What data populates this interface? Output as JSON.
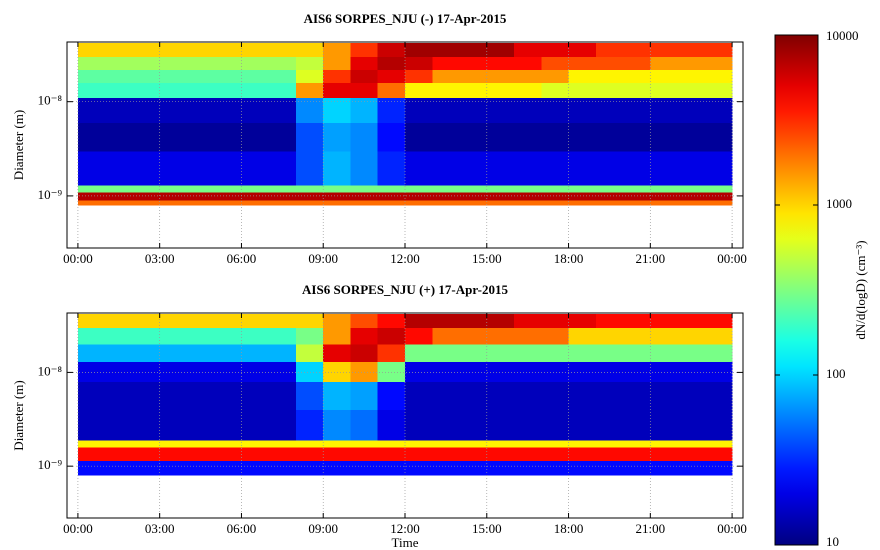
{
  "chart_data": [
    {
      "type": "heatmap",
      "title": "AIS6 SORPES_NJU (-) 17-Apr-2015",
      "ylabel": "Diameter (m)",
      "xlim": [
        -0.4,
        24.4
      ],
      "ylim": [
        2.8e-10,
        4.3e-08
      ],
      "ylog": true,
      "grid": true,
      "xticks": [
        {
          "value": 0,
          "label": "00:00"
        },
        {
          "value": 3,
          "label": "03:00"
        },
        {
          "value": 6,
          "label": "06:00"
        },
        {
          "value": 9,
          "label": "09:00"
        },
        {
          "value": 12,
          "label": "12:00"
        },
        {
          "value": 15,
          "label": "15:00"
        },
        {
          "value": 18,
          "label": "18:00"
        },
        {
          "value": 21,
          "label": "21:00"
        },
        {
          "value": 24,
          "label": "00:00"
        }
      ],
      "yticks": [
        {
          "value": 1e-09,
          "label": "10⁻⁹"
        },
        {
          "value": 1e-08,
          "label": "10⁻⁸"
        }
      ],
      "x_bins": [
        0,
        1,
        2,
        3,
        4,
        5,
        6,
        7,
        8,
        9,
        10,
        11,
        12,
        13,
        14,
        15,
        16,
        17,
        18,
        19,
        20,
        21,
        22,
        23,
        24
      ],
      "y_bins": [
        8e-10,
        9e-10,
        1.1e-09,
        1.3e-09,
        3e-09,
        6e-09,
        1.1e-08,
        1.6e-08,
        2.2e-08,
        3e-08,
        4.2e-08
      ],
      "z": [
        [
          2000,
          2000,
          2000,
          2000,
          2000,
          2000,
          2000,
          2000,
          2000,
          2000,
          2000,
          2000,
          2000,
          2000,
          2000,
          2000,
          2000,
          2000,
          2000,
          2000,
          2000,
          2000,
          2000,
          2000
        ],
        [
          7000,
          7000,
          7000,
          7000,
          7000,
          7000,
          7000,
          7000,
          7000,
          7000,
          7000,
          7000,
          7000,
          7000,
          7000,
          7000,
          7000,
          7000,
          7000,
          7000,
          7000,
          7000,
          7000,
          7000
        ],
        [
          300,
          300,
          300,
          300,
          300,
          300,
          300,
          300,
          300,
          300,
          300,
          300,
          300,
          300,
          300,
          300,
          300,
          300,
          300,
          300,
          300,
          300,
          300,
          300
        ],
        [
          20,
          20,
          20,
          20,
          20,
          20,
          20,
          20,
          40,
          80,
          60,
          30,
          20,
          20,
          20,
          20,
          20,
          20,
          20,
          20,
          20,
          20,
          20,
          20
        ],
        [
          12,
          12,
          12,
          12,
          12,
          12,
          12,
          12,
          40,
          70,
          60,
          25,
          12,
          12,
          12,
          12,
          12,
          12,
          12,
          12,
          12,
          12,
          12,
          12
        ],
        [
          15,
          15,
          15,
          15,
          15,
          15,
          15,
          15,
          60,
          100,
          80,
          30,
          15,
          15,
          15,
          15,
          15,
          15,
          15,
          15,
          15,
          15,
          15,
          15
        ],
        [
          200,
          200,
          200,
          200,
          200,
          200,
          200,
          200,
          1500,
          5000,
          5000,
          2000,
          800,
          800,
          800,
          800,
          800,
          600,
          600,
          600,
          600,
          600,
          600,
          600
        ],
        [
          250,
          250,
          250,
          250,
          250,
          250,
          250,
          250,
          600,
          3000,
          6000,
          5000,
          3000,
          1500,
          1500,
          1500,
          1500,
          1500,
          800,
          800,
          800,
          800,
          800,
          800
        ],
        [
          400,
          400,
          400,
          400,
          400,
          400,
          400,
          400,
          500,
          1500,
          5000,
          7000,
          6000,
          4000,
          4000,
          4000,
          4000,
          2500,
          2500,
          2500,
          2500,
          1500,
          1500,
          1500
        ],
        [
          1000,
          1000,
          1000,
          1000,
          1000,
          1000,
          1000,
          1000,
          1000,
          1500,
          3000,
          6000,
          8000,
          8000,
          8000,
          8000,
          5000,
          5000,
          5000,
          3000,
          3000,
          3000,
          3000,
          3000
        ]
      ]
    },
    {
      "type": "heatmap",
      "title": "AIS6 SORPES_NJU (+) 17-Apr-2015",
      "ylabel": "Diameter (m)",
      "xlabel": "Time",
      "xlim": [
        -0.4,
        24.4
      ],
      "ylim": [
        2.8e-10,
        4.3e-08
      ],
      "ylog": true,
      "grid": true,
      "xticks": [
        {
          "value": 0,
          "label": "00:00"
        },
        {
          "value": 3,
          "label": "03:00"
        },
        {
          "value": 6,
          "label": "06:00"
        },
        {
          "value": 9,
          "label": "09:00"
        },
        {
          "value": 12,
          "label": "12:00"
        },
        {
          "value": 15,
          "label": "15:00"
        },
        {
          "value": 18,
          "label": "18:00"
        },
        {
          "value": 21,
          "label": "21:00"
        },
        {
          "value": 24,
          "label": "00:00"
        }
      ],
      "yticks": [
        {
          "value": 1e-09,
          "label": "10⁻⁹"
        },
        {
          "value": 1e-08,
          "label": "10⁻⁸"
        }
      ],
      "x_bins": [
        0,
        1,
        2,
        3,
        4,
        5,
        6,
        7,
        8,
        9,
        10,
        11,
        12,
        13,
        14,
        15,
        16,
        17,
        18,
        19,
        20,
        21,
        22,
        23,
        24
      ],
      "y_bins": [
        8e-10,
        1.15e-09,
        1.6e-09,
        1.9e-09,
        4e-09,
        8e-09,
        1.3e-08,
        2e-08,
        3e-08,
        4.2e-08
      ],
      "z": [
        [
          25,
          25,
          25,
          25,
          25,
          25,
          25,
          25,
          25,
          25,
          25,
          25,
          25,
          25,
          25,
          25,
          25,
          25,
          25,
          25,
          25,
          25,
          25,
          25
        ],
        [
          4000,
          4000,
          4000,
          4000,
          4000,
          4000,
          4000,
          4000,
          4000,
          4000,
          4000,
          4000,
          4000,
          4000,
          4000,
          4000,
          4000,
          4000,
          4000,
          4000,
          4000,
          4000,
          4000,
          4000
        ],
        [
          800,
          800,
          800,
          800,
          800,
          800,
          800,
          800,
          800,
          800,
          800,
          800,
          800,
          800,
          800,
          800,
          800,
          800,
          800,
          800,
          800,
          800,
          800,
          800
        ],
        [
          15,
          15,
          15,
          15,
          15,
          15,
          15,
          15,
          30,
          60,
          50,
          20,
          15,
          15,
          15,
          15,
          15,
          15,
          15,
          15,
          15,
          15,
          15,
          15
        ],
        [
          15,
          15,
          15,
          15,
          15,
          15,
          15,
          15,
          40,
          80,
          70,
          25,
          15,
          15,
          15,
          15,
          15,
          15,
          15,
          15,
          15,
          15,
          15,
          15
        ],
        [
          20,
          20,
          20,
          20,
          20,
          20,
          20,
          20,
          100,
          1000,
          1500,
          300,
          20,
          20,
          20,
          20,
          20,
          20,
          20,
          20,
          20,
          20,
          20,
          20
        ],
        [
          80,
          80,
          80,
          80,
          80,
          80,
          80,
          80,
          500,
          5000,
          6000,
          3000,
          300,
          300,
          300,
          300,
          300,
          300,
          300,
          300,
          300,
          300,
          300,
          300
        ],
        [
          200,
          200,
          200,
          200,
          200,
          200,
          200,
          200,
          300,
          1500,
          5000,
          6000,
          4000,
          2000,
          2000,
          2000,
          2000,
          2000,
          1000,
          1000,
          1000,
          1000,
          1000,
          1000
        ],
        [
          1000,
          1000,
          1000,
          1000,
          1000,
          1000,
          1000,
          1000,
          1000,
          1500,
          2500,
          4000,
          7000,
          7000,
          7000,
          7000,
          5000,
          5000,
          5000,
          4000,
          4000,
          4000,
          4000,
          4000
        ]
      ]
    }
  ],
  "colorbar": {
    "label": "dN/d(logD) (cm⁻³)",
    "lim": [
      10,
      10000
    ],
    "ticks": [
      10,
      100,
      1000,
      10000
    ],
    "scale": "log",
    "colormap": "jet"
  }
}
